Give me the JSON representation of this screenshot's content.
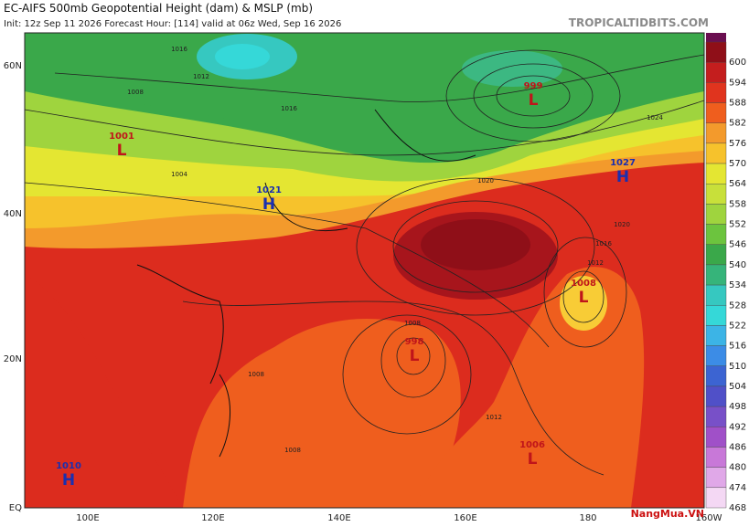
{
  "header": {
    "title": "EC-AIFS 500mb Geopotential Height (dam) & MSLP (mb)",
    "run_info": "Init: 12z Sep 11 2026   Forecast Hour: [114]   valid at 06z Wed, Sep 16 2026",
    "attribution": "TROPICALTIDBITS.COM"
  },
  "colorbar": [
    600,
    594,
    588,
    582,
    576,
    570,
    564,
    558,
    552,
    546,
    540,
    534,
    528,
    522,
    516,
    510,
    504,
    498,
    492,
    486,
    480,
    474,
    468
  ],
  "lat_labels": [
    "60N",
    "40N",
    "20N",
    "EQ"
  ],
  "lon_labels": [
    "100E",
    "120E",
    "140E",
    "160E",
    "180",
    "160W"
  ],
  "systems": [
    {
      "letter": "L",
      "value": "999"
    },
    {
      "letter": "L",
      "value": "1001"
    },
    {
      "letter": "H",
      "value": "1027"
    },
    {
      "letter": "H",
      "value": "1021"
    },
    {
      "letter": "L",
      "value": "1008"
    },
    {
      "letter": "L",
      "value": "998"
    },
    {
      "letter": "H",
      "value": "1010"
    },
    {
      "letter": "L",
      "value": "1006"
    }
  ],
  "contour_labels": [
    "1016",
    "1012",
    "1008",
    "1004",
    "1016",
    "1020",
    "1024",
    "1020",
    "1012",
    "1016",
    "1008",
    "1008",
    "1012",
    "1008"
  ],
  "watermark": "NangMua.VN"
}
